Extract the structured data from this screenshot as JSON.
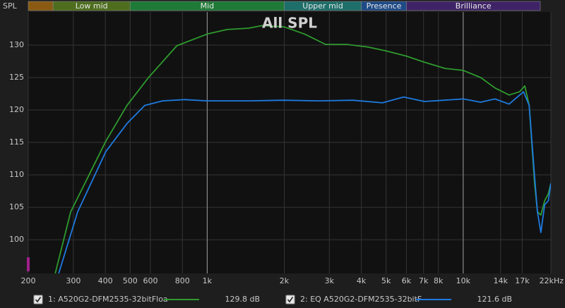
{
  "chart_data": {
    "type": "line",
    "title": "All SPL",
    "y_label": "SPL",
    "x_scale": "log",
    "xlim": [
      200,
      22000
    ],
    "ylim": [
      94.8,
      135.1
    ],
    "yticks": [
      100,
      105,
      110,
      115,
      120,
      125,
      130
    ],
    "xticks": [
      200,
      300,
      400,
      500,
      600,
      800,
      {
        "value": 1000,
        "label": "1k"
      },
      {
        "value": 2000,
        "label": "2k"
      },
      {
        "value": 3000,
        "label": "3k"
      },
      {
        "value": 4000,
        "label": "4k"
      },
      {
        "value": 5000,
        "label": "5k"
      },
      {
        "value": 6000,
        "label": "6k"
      },
      {
        "value": 7000,
        "label": "7k"
      },
      {
        "value": 8000,
        "label": "8k"
      },
      {
        "value": 10000,
        "label": "10k"
      },
      {
        "value": 14000,
        "label": "14k"
      },
      {
        "value": 17000,
        "label": "17k"
      },
      {
        "value": 22000,
        "label": "22kHz"
      }
    ],
    "major_gridlines": [
      1000,
      10000
    ],
    "grid": true,
    "bands": [
      {
        "name": null,
        "from": 200,
        "to": 250,
        "color": "#8a5a12"
      },
      {
        "name": "Low mid",
        "from": 250,
        "to": 500,
        "color": "#4e6e1e"
      },
      {
        "name": "Mid",
        "from": 500,
        "to": 2000,
        "color": "#1e7a36"
      },
      {
        "name": "Upper mid",
        "from": 2000,
        "to": 4000,
        "color": "#1e6e6a"
      },
      {
        "name": "Presence",
        "from": 4000,
        "to": 6000,
        "color": "#1e4a86"
      },
      {
        "name": "Brilliance",
        "from": 6000,
        "to": 20000,
        "color": "#3e2466"
      }
    ],
    "series": [
      {
        "name": "1: A520G2-DFM2535-32bitFloa",
        "color": "#2e9a2e",
        "readout": "129.8 dB",
        "x": [
          255,
          293,
          402,
          486,
          590,
          761,
          1000,
          1195,
          1450,
          1640,
          2000,
          2400,
          2900,
          3500,
          4250,
          5000,
          6000,
          7000,
          8500,
          10000,
          11700,
          13300,
          15100,
          16600,
          17400,
          18100,
          19000,
          19500,
          20100,
          20800,
          21500,
          22000
        ],
        "values": [
          94.8,
          104.3,
          115.2,
          120.7,
          125,
          129.9,
          131.7,
          132.4,
          132.6,
          133,
          132.8,
          131.7,
          130.1,
          130.1,
          129.7,
          129.1,
          128.3,
          127.4,
          126.4,
          126.1,
          125,
          123.4,
          122.3,
          122.8,
          123.7,
          120.7,
          108.7,
          104.3,
          103.8,
          106,
          107.1,
          108.7
        ]
      },
      {
        "name": "2: EQ A520G2-DFM2535-32bitF",
        "color": "#1e7ae0",
        "readout": "121.6 dB",
        "x": [
          263,
          312,
          402,
          486,
          570,
          670,
          816,
          1000,
          1446,
          1990,
          2730,
          3700,
          4840,
          5850,
          7050,
          10000,
          11700,
          13300,
          15100,
          17200,
          18100,
          19000,
          19500,
          20100,
          20800,
          21500,
          22000
        ],
        "values": [
          94.8,
          104.3,
          113.6,
          117.9,
          120.7,
          121.4,
          121.6,
          121.4,
          121.4,
          121.5,
          121.4,
          121.5,
          121.1,
          122,
          121.3,
          121.7,
          121.2,
          121.7,
          120.9,
          122.8,
          120.7,
          109.8,
          104.3,
          101.1,
          105.4,
          106,
          108.7
        ]
      }
    ]
  }
}
